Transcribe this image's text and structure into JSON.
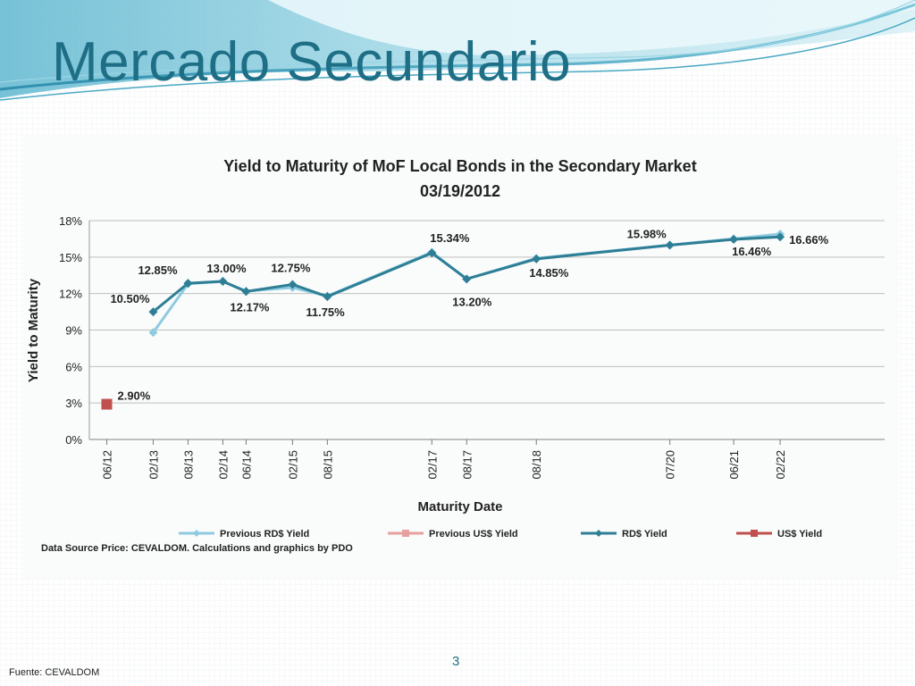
{
  "slide": {
    "title": "Mercado Secundario",
    "footer": "Fuente: CEVALDOM",
    "page_number": "3"
  },
  "colors": {
    "title": "#1e6f86",
    "rds": "#2e7f96",
    "prev_rds": "#8ecbe0",
    "us": "#c0504d",
    "prev_us": "#e6a0a0",
    "grid": "#bfbfbf"
  },
  "chart_data": {
    "type": "line",
    "title": "Yield to Maturity of MoF Local Bonds in the Secondary Market",
    "subtitle": "03/19/2012",
    "xlabel": "Maturity Date",
    "ylabel": "Yield to Maturity",
    "x_axis_type": "date",
    "x_ticks": [
      "06/12",
      "02/13",
      "08/13",
      "02/14",
      "06/14",
      "02/15",
      "08/15",
      "02/17",
      "08/17",
      "08/18",
      "07/20",
      "06/21",
      "02/22"
    ],
    "y_ticks": [
      "0%",
      "3%",
      "6%",
      "9%",
      "12%",
      "15%",
      "18%"
    ],
    "ylim": [
      0,
      18
    ],
    "grid": "horizontal",
    "legend_position": "bottom",
    "source": "Data Source Price: CEVALDOM. Calculations and graphics by PDO",
    "series": [
      {
        "name": "Previous RD$ Yield",
        "x": [
          "02/13",
          "08/13",
          "02/14",
          "06/14",
          "02/15",
          "08/15",
          "02/17",
          "08/17",
          "08/18",
          "07/20",
          "06/21",
          "02/22"
        ],
        "y": [
          8.8,
          12.8,
          13.0,
          12.2,
          12.5,
          11.8,
          15.4,
          13.2,
          14.9,
          16.0,
          16.5,
          16.9
        ]
      },
      {
        "name": "Previous US$ Yield",
        "x": [],
        "y": []
      },
      {
        "name": "RD$ Yield",
        "x": [
          "02/13",
          "08/13",
          "02/14",
          "06/14",
          "02/15",
          "08/15",
          "02/17",
          "08/17",
          "08/18",
          "07/20",
          "06/21",
          "02/22"
        ],
        "y": [
          10.5,
          12.85,
          13.0,
          12.17,
          12.75,
          11.75,
          15.34,
          13.2,
          14.85,
          15.98,
          16.46,
          16.66
        ],
        "labels": [
          "10.50%",
          "12.85%",
          "13.00%",
          "12.17%",
          "12.75%",
          "11.75%",
          "15.34%",
          "13.20%",
          "14.85%",
          "15.98%",
          "16.46%",
          "16.66%"
        ]
      },
      {
        "name": "US$ Yield",
        "x": [
          "06/12"
        ],
        "y": [
          2.9
        ],
        "labels": [
          "2.90%"
        ]
      }
    ]
  }
}
